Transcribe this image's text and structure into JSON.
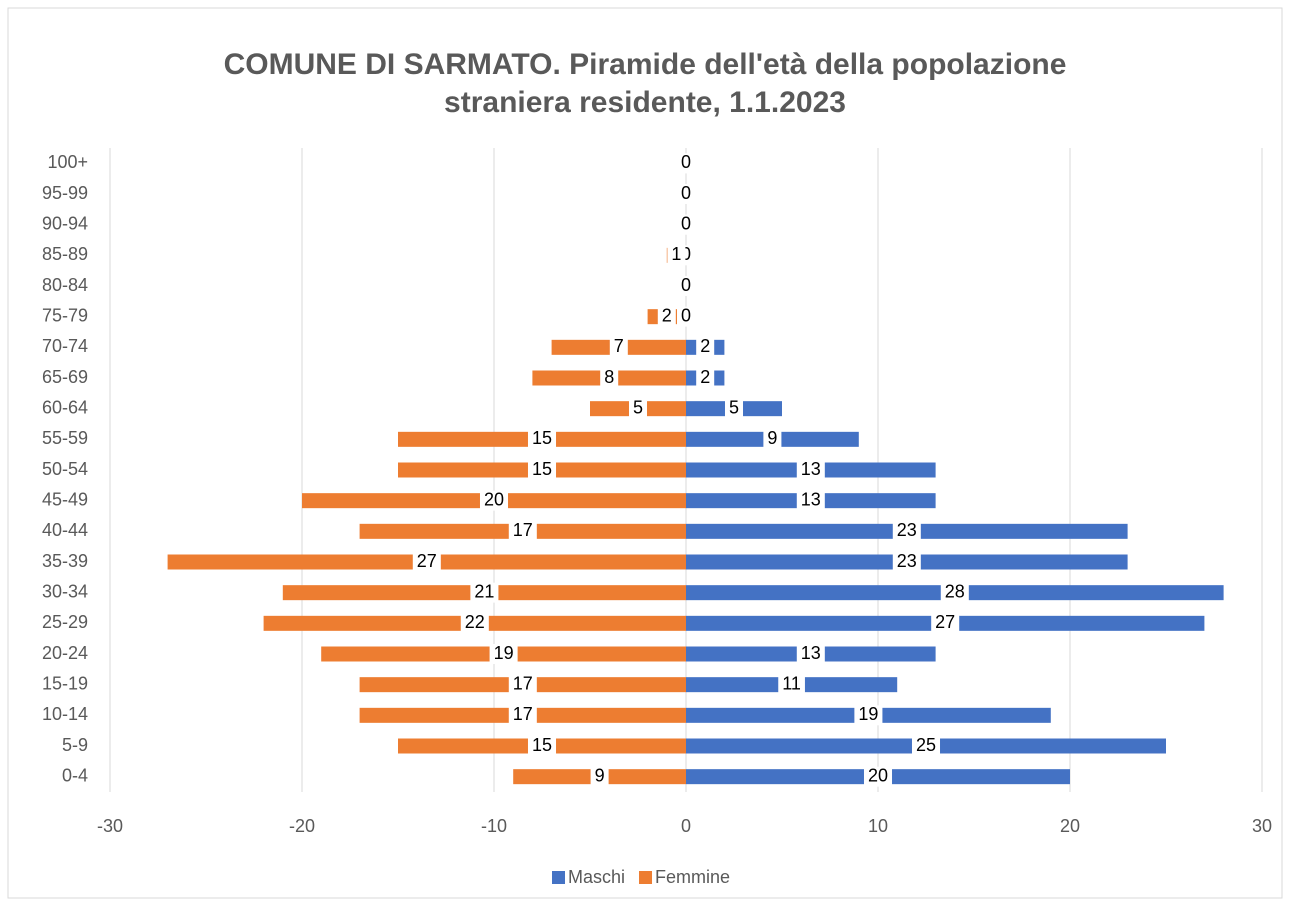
{
  "chart_data": {
    "type": "bar",
    "orientation": "horizontal",
    "title": "COMUNE DI SARMATO. Piramide dell'età della popolazione straniera residente, 1.1.2023",
    "categories": [
      "0-4",
      "5-9",
      "10-14",
      "15-19",
      "20-24",
      "25-29",
      "30-34",
      "35-39",
      "40-44",
      "45-49",
      "50-54",
      "55-59",
      "60-64",
      "65-69",
      "70-74",
      "75-79",
      "80-84",
      "85-89",
      "90-94",
      "95-99",
      "100+"
    ],
    "series": [
      {
        "name": "Maschi",
        "color": "#4472c4",
        "values": [
          20,
          25,
          19,
          11,
          13,
          27,
          28,
          23,
          23,
          13,
          13,
          9,
          5,
          2,
          2,
          0,
          0,
          0,
          0,
          0,
          0
        ]
      },
      {
        "name": "Femmine",
        "color": "#ed7d31",
        "values": [
          -9,
          -15,
          -17,
          -17,
          -19,
          -22,
          -21,
          -27,
          -17,
          -20,
          -15,
          -15,
          -5,
          -8,
          -7,
          -2,
          0,
          -1,
          0,
          0,
          0
        ],
        "value_labels": [
          "9",
          "15",
          "17",
          "17",
          "19",
          "22",
          "21",
          "27",
          "17",
          "20",
          "15",
          "15",
          "5",
          "8",
          "7",
          "2",
          "0",
          "1",
          "0",
          "0",
          "0"
        ]
      }
    ],
    "xlim": [
      -30,
      30
    ],
    "xticks": [
      -30,
      -20,
      -10,
      0,
      10,
      20,
      30
    ],
    "grid": true,
    "legend": "bottom"
  }
}
